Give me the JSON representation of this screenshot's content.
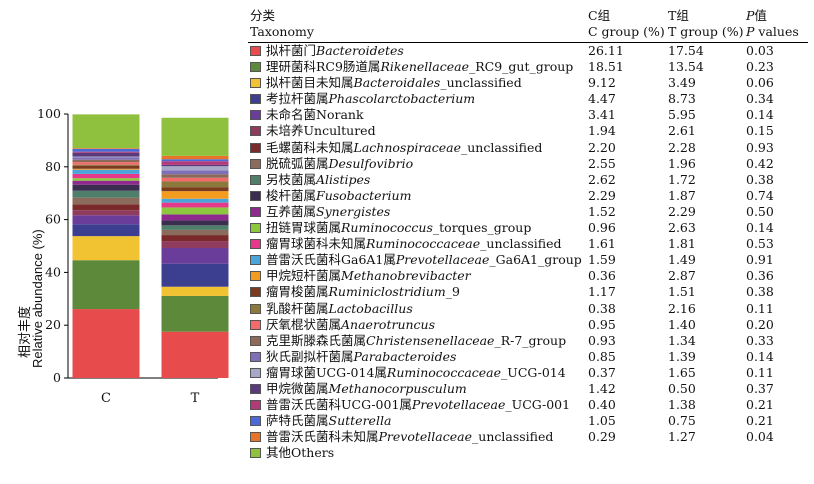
{
  "chart_data": {
    "type": "bar",
    "stacked": true,
    "categories": [
      "C",
      "T"
    ],
    "y_axis_label_cn": "相对丰度",
    "y_axis_label_en": "Relative abundance (%)",
    "ylim": [
      0,
      100
    ],
    "yticks": [
      "0",
      "20",
      "40",
      "60",
      "80",
      "100"
    ],
    "series": [
      {
        "name": "Bacteroidetes",
        "color": "#e84b4b",
        "values": [
          26.11,
          17.54
        ]
      },
      {
        "name": "Rikenellaceae_RC9_gut_group",
        "color": "#5d8a3a",
        "values": [
          18.51,
          13.54
        ]
      },
      {
        "name": "Bacteroidales_unclassified",
        "color": "#f1c232",
        "values": [
          9.12,
          3.49
        ]
      },
      {
        "name": "Phascolarctobacterium",
        "color": "#3c3f8f",
        "values": [
          4.47,
          8.73
        ]
      },
      {
        "name": "Norank",
        "color": "#6a3d9a",
        "values": [
          3.41,
          5.95
        ]
      },
      {
        "name": "Uncultured",
        "color": "#8e3b5e",
        "values": [
          1.94,
          2.61
        ]
      },
      {
        "name": "Lachnospiraceae_unclassified",
        "color": "#7a2a2a",
        "values": [
          2.2,
          2.28
        ]
      },
      {
        "name": "Desulfovibrio",
        "color": "#8b6b5b",
        "values": [
          2.55,
          1.96
        ]
      },
      {
        "name": "Alistipes",
        "color": "#4f7f6a",
        "values": [
          2.62,
          1.72
        ]
      },
      {
        "name": "Fusobacterium",
        "color": "#3a2d4f",
        "values": [
          2.29,
          1.87
        ]
      },
      {
        "name": "Synergistes",
        "color": "#8e2a8e",
        "values": [
          1.52,
          2.29
        ]
      },
      {
        "name": "Ruminococcus_torques_group",
        "color": "#8dc63f",
        "values": [
          0.96,
          2.63
        ]
      },
      {
        "name": "Ruminococcaceae_unclassified",
        "color": "#e6398c",
        "values": [
          1.61,
          1.81
        ]
      },
      {
        "name": "Prevotellaceae_Ga6A1_group",
        "color": "#4aa6d8",
        "values": [
          1.59,
          1.49
        ]
      },
      {
        "name": "Methanobrevibacter",
        "color": "#f39c1f",
        "values": [
          0.36,
          2.87
        ]
      },
      {
        "name": "Ruminiclostridium_9",
        "color": "#7b3b1f",
        "values": [
          1.17,
          1.51
        ]
      },
      {
        "name": "Lactobacillus",
        "color": "#8c7a3c",
        "values": [
          0.38,
          2.16
        ]
      },
      {
        "name": "Anaerotruncus",
        "color": "#f26b6b",
        "values": [
          0.95,
          1.4
        ]
      },
      {
        "name": "Christensenellaceae_R-7_group",
        "color": "#8c6a5a",
        "values": [
          0.93,
          1.34
        ]
      },
      {
        "name": "Parabacteroides",
        "color": "#7f6fb8",
        "values": [
          0.85,
          1.39
        ]
      },
      {
        "name": "Ruminococcaceae_UCG-014",
        "color": "#a7a7c7",
        "values": [
          0.37,
          1.65
        ]
      },
      {
        "name": "Methanocorpusculum",
        "color": "#5a3a7a",
        "values": [
          1.42,
          0.5
        ]
      },
      {
        "name": "Prevotellaceae_UCG-001",
        "color": "#b23a7a",
        "values": [
          0.4,
          1.38
        ]
      },
      {
        "name": "Sutterella",
        "color": "#4a6ad8",
        "values": [
          1.05,
          0.75
        ]
      },
      {
        "name": "Prevotellaceae_unclassified",
        "color": "#e8742b",
        "values": [
          0.29,
          1.27
        ]
      },
      {
        "name": "Others",
        "color": "#8fc13f",
        "values": [
          12.79,
          14.45
        ]
      }
    ]
  },
  "table": {
    "header": {
      "taxonomy_cn": "分类",
      "taxonomy_en": "Taxonomy",
      "c_cn": "C组",
      "c_en": "C group (%)",
      "t_cn": "T组",
      "t_en": "T group (%)",
      "p_cn_italic": "P",
      "p_cn_rest": "值",
      "p_en_italic": "P",
      "p_en_rest": " values"
    },
    "rows": [
      {
        "cn": "拟杆菌门",
        "it": "Bacteroidetes",
        "suffix": "",
        "c": "26.11",
        "t": "17.54",
        "p": "0.03"
      },
      {
        "cn": "理研菌科RC9肠道属",
        "it": "Rikenellaceae",
        "suffix": "_RC9_gut_group",
        "c": "18.51",
        "t": "13.54",
        "p": "0.23"
      },
      {
        "cn": "拟杆菌目未知属",
        "it": "Bacteroidales",
        "suffix": "_unclassified",
        "c": "9.12",
        "t": "3.49",
        "p": "0.06"
      },
      {
        "cn": "考拉杆菌属",
        "it": "Phascolarctobacterium",
        "suffix": "",
        "c": "4.47",
        "t": "8.73",
        "p": "0.34"
      },
      {
        "cn": "未命名菌Norank",
        "it": "",
        "suffix": "",
        "c": "3.41",
        "t": "5.95",
        "p": "0.14"
      },
      {
        "cn": "未培养Uncultured",
        "it": "",
        "suffix": "",
        "c": "1.94",
        "t": "2.61",
        "p": "0.15"
      },
      {
        "cn": "毛螺菌科未知属",
        "it": "Lachnospiraceae",
        "suffix": "_unclassified",
        "c": "2.20",
        "t": "2.28",
        "p": "0.93"
      },
      {
        "cn": "脱硫弧菌属",
        "it": "Desulfovibrio",
        "suffix": "",
        "c": "2.55",
        "t": "1.96",
        "p": "0.42"
      },
      {
        "cn": "另枝菌属",
        "it": "Alistipes",
        "suffix": "",
        "c": "2.62",
        "t": "1.72",
        "p": "0.38"
      },
      {
        "cn": "梭杆菌属",
        "it": "Fusobacterium",
        "suffix": "",
        "c": "2.29",
        "t": "1.87",
        "p": "0.74"
      },
      {
        "cn": "互养菌属",
        "it": "Synergistes",
        "suffix": "",
        "c": "1.52",
        "t": "2.29",
        "p": "0.50"
      },
      {
        "cn": "扭链胃球菌属",
        "it": "Ruminococcus",
        "suffix": "_torques_group",
        "c": "0.96",
        "t": "2.63",
        "p": "0.14"
      },
      {
        "cn": "瘤胃球菌科未知属",
        "it": "Ruminococcaceae",
        "suffix": "_unclassified",
        "c": "1.61",
        "t": "1.81",
        "p": "0.53"
      },
      {
        "cn": "普雷沃氏菌科Ga6A1属",
        "it": "Prevotellaceae",
        "suffix": "_Ga6A1_group",
        "c": "1.59",
        "t": "1.49",
        "p": "0.91"
      },
      {
        "cn": "甲烷短杆菌属",
        "it": "Methanobrevibacter",
        "suffix": "",
        "c": "0.36",
        "t": "2.87",
        "p": "0.36"
      },
      {
        "cn": "瘤胃梭菌属",
        "it": "Ruminiclostridium",
        "suffix": "_9",
        "c": "1.17",
        "t": "1.51",
        "p": "0.38"
      },
      {
        "cn": "乳酸杆菌属",
        "it": "Lactobacillus",
        "suffix": "",
        "c": "0.38",
        "t": "2.16",
        "p": "0.11"
      },
      {
        "cn": "厌氧棍状菌属",
        "it": "Anaerotruncus",
        "suffix": "",
        "c": "0.95",
        "t": "1.40",
        "p": "0.20"
      },
      {
        "cn": "克里斯滕森氏菌属",
        "it": "Christensenellaceae",
        "suffix": "_R-7_group",
        "c": "0.93",
        "t": "1.34",
        "p": "0.33"
      },
      {
        "cn": "狄氏副拟杆菌属",
        "it": "Parabacteroides",
        "suffix": "",
        "c": "0.85",
        "t": "1.39",
        "p": "0.14"
      },
      {
        "cn": "瘤胃球菌UCG-014属",
        "it": "Ruminococcaceae",
        "suffix": "_UCG-014",
        "c": "0.37",
        "t": "1.65",
        "p": "0.11"
      },
      {
        "cn": "甲烷微菌属",
        "it": "Methanocorpusculum",
        "suffix": "",
        "c": "1.42",
        "t": "0.50",
        "p": "0.37"
      },
      {
        "cn": "普雷沃氏菌科UCG-001属",
        "it": "Prevotellaceae",
        "suffix": "_UCG-001",
        "c": "0.40",
        "t": "1.38",
        "p": "0.21"
      },
      {
        "cn": "萨特氏菌属",
        "it": "Sutterella",
        "suffix": "",
        "c": "1.05",
        "t": "0.75",
        "p": "0.21"
      },
      {
        "cn": "普雷沃氏菌科未知属",
        "it": "Prevotellaceae",
        "suffix": "_unclassified",
        "c": "0.29",
        "t": "1.27",
        "p": "0.04"
      },
      {
        "cn": "其他Others",
        "it": "",
        "suffix": "",
        "c": "",
        "t": "",
        "p": ""
      }
    ]
  }
}
